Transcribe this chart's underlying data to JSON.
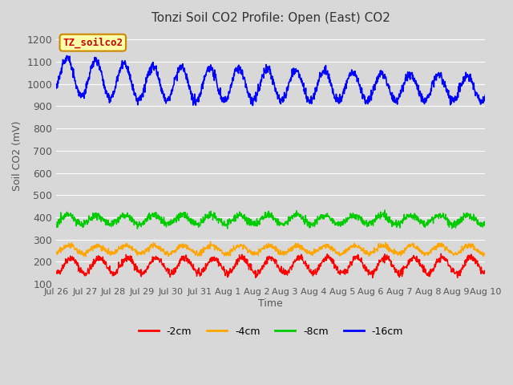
{
  "title": "Tonzi Soil CO2 Profile: Open (East) CO2",
  "ylabel": "Soil CO2 (mV)",
  "xlabel": "Time",
  "ylim": [
    100,
    1250
  ],
  "yticks": [
    100,
    200,
    300,
    400,
    500,
    600,
    700,
    800,
    900,
    1000,
    1100,
    1200
  ],
  "fig_bg": "#d8d8d8",
  "plot_bg": "#d8d8d8",
  "grid_color": "#ffffff",
  "xtick_labels": [
    "Jul 26",
    "Jul 27",
    "Jul 28",
    "Jul 29",
    "Jul 30",
    "Jul 31",
    "Aug 1",
    "Aug 2",
    "Aug 3",
    "Aug 4",
    "Aug 5",
    "Aug 6",
    "Aug 7",
    "Aug 8",
    "Aug 9",
    "Aug 10"
  ],
  "legend_entries": [
    "-2cm",
    "-4cm",
    "-8cm",
    "-16cm"
  ],
  "legend_colors": [
    "#ff0000",
    "#ffa500",
    "#00cc00",
    "#0000ff"
  ],
  "watermark_text": "TZ_soilco2",
  "watermark_bg": "#ffffaa",
  "watermark_border": "#cc8800",
  "watermark_text_color": "#cc0000",
  "n_days": 15,
  "pts_per_day": 96,
  "s2_base": 183,
  "s2_amp": 35,
  "s2_noise": 8,
  "s4_base": 255,
  "s4_amp": 18,
  "s4_noise": 6,
  "s8_base": 390,
  "s8_amp": 20,
  "s8_noise": 8,
  "s16_base": 1000,
  "s16_amp": 70,
  "s16_noise": 10
}
